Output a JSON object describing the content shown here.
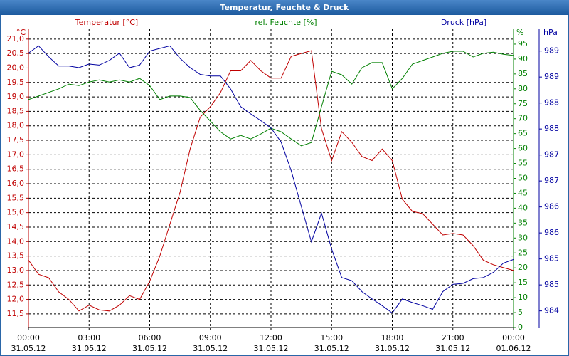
{
  "chart_data": {
    "type": "line",
    "title": "Temperatur, Feuchte & Druck",
    "ylabel": "Temperatur [°C]",
    "yunit": "°C",
    "y3label": "rel. Feuchte [%]",
    "y3unit": "%",
    "y2label": "Druck [hPa]",
    "y2unit": "hPa",
    "grid": true,
    "x": [
      0,
      0.5,
      1,
      1.5,
      2,
      2.5,
      3,
      3.5,
      4,
      4.5,
      5,
      5.5,
      6,
      6.5,
      7,
      7.5,
      8,
      8.5,
      9,
      9.5,
      10,
      10.5,
      11,
      11.5,
      12,
      12.5,
      13,
      13.5,
      14,
      14.5,
      15,
      15.5,
      16,
      16.5,
      17,
      17.5,
      18,
      18.5,
      19,
      19.5,
      20,
      20.5,
      21,
      21.5,
      22,
      22.5,
      23,
      23.5,
      24
    ],
    "xlim": [
      0,
      24
    ],
    "xticks": [
      {
        "value": 0,
        "label": "00:00",
        "date": "31.05.12"
      },
      {
        "value": 3,
        "label": "03:00",
        "date": "31.05.12"
      },
      {
        "value": 6,
        "label": "06:00",
        "date": "31.05.12"
      },
      {
        "value": 9,
        "label": "09:00",
        "date": "31.05.12"
      },
      {
        "value": 12,
        "label": "12:00",
        "date": "31.05.12"
      },
      {
        "value": 15,
        "label": "15:00",
        "date": "31.05.12"
      },
      {
        "value": 18,
        "label": "18:00",
        "date": "31.05.12"
      },
      {
        "value": 21,
        "label": "21:00",
        "date": "31.05.12"
      },
      {
        "value": 24,
        "label": "00:00",
        "date": "01.06.12"
      }
    ],
    "ylim": [
      11.03,
      21.34
    ],
    "yticks": [
      {
        "value": 11.5,
        "label": "11,5"
      },
      {
        "value": 12,
        "label": "12,0"
      },
      {
        "value": 12.5,
        "label": "12,5"
      },
      {
        "value": 13,
        "label": "13,0"
      },
      {
        "value": 13.5,
        "label": "13,5"
      },
      {
        "value": 14,
        "label": "14,0"
      },
      {
        "value": 14.5,
        "label": "14,5"
      },
      {
        "value": 15,
        "label": "15,0"
      },
      {
        "value": 15.5,
        "label": "15,5"
      },
      {
        "value": 16,
        "label": "16,0"
      },
      {
        "value": 16.5,
        "label": "16,5"
      },
      {
        "value": 17,
        "label": "17,0"
      },
      {
        "value": 17.5,
        "label": "17,5"
      },
      {
        "value": 18,
        "label": "18,0"
      },
      {
        "value": 18.5,
        "label": "18,5"
      },
      {
        "value": 19,
        "label": "19,0"
      },
      {
        "value": 19.5,
        "label": "19,5"
      },
      {
        "value": 20,
        "label": "20,0"
      },
      {
        "value": 20.5,
        "label": "20,5"
      },
      {
        "value": 21,
        "label": "21,0"
      }
    ],
    "y3lim": [
      0,
      100
    ],
    "y3ticks": [
      0,
      5,
      10,
      15,
      20,
      25,
      30,
      35,
      40,
      45,
      50,
      55,
      60,
      65,
      70,
      75,
      80,
      85,
      90,
      95
    ],
    "y2lim": [
      983.68,
      989.42
    ],
    "y2ticks": [
      {
        "value": 984,
        "label": "984"
      },
      {
        "value": 984.5,
        "label": "985"
      },
      {
        "value": 985,
        "label": "985"
      },
      {
        "value": 985.5,
        "label": "986"
      },
      {
        "value": 986,
        "label": "986"
      },
      {
        "value": 986.5,
        "label": "987"
      },
      {
        "value": 987,
        "label": "987"
      },
      {
        "value": 987.5,
        "label": "988"
      },
      {
        "value": 988,
        "label": "988"
      },
      {
        "value": 988.5,
        "label": "989"
      },
      {
        "value": 989,
        "label": "989"
      }
    ],
    "series": [
      {
        "name": "Temperatur [°C]",
        "color": "#c00000",
        "axis": "y",
        "values": [
          13.36,
          12.87,
          12.75,
          12.26,
          12.0,
          11.6,
          11.8,
          11.64,
          11.6,
          11.8,
          12.13,
          12.0,
          12.63,
          13.5,
          14.6,
          15.7,
          17.2,
          18.3,
          18.66,
          19.15,
          19.9,
          19.9,
          20.26,
          19.9,
          19.65,
          19.65,
          20.4,
          20.5,
          20.6,
          17.9,
          16.8,
          17.8,
          17.43,
          16.94,
          16.8,
          17.2,
          16.8,
          15.46,
          15.04,
          14.97,
          14.6,
          14.23,
          14.28,
          14.23,
          13.86,
          13.36,
          13.2,
          13.1,
          13.0
        ]
      },
      {
        "name": "rel. Feuchte [%]",
        "color": "#008000",
        "axis": "y3",
        "values": [
          76.4,
          77.6,
          78.8,
          80,
          81.6,
          81.1,
          82.3,
          83,
          82.3,
          83,
          82.3,
          83.5,
          81.1,
          76.4,
          77.6,
          77.6,
          77.1,
          72.8,
          69.2,
          65.6,
          63.2,
          64.4,
          63.2,
          64.9,
          66.8,
          65.6,
          63.2,
          60.9,
          62,
          74,
          85.9,
          84.7,
          81.6,
          87.1,
          88.8,
          88.8,
          80,
          83.5,
          88.3,
          89.5,
          90.7,
          91.9,
          92.6,
          92.6,
          90.7,
          91.9,
          92.3,
          91.6,
          91.2
        ]
      },
      {
        "name": "Druck [hPa]",
        "color": "#0000a0",
        "axis": "y2",
        "values": [
          988.96,
          989.1,
          988.89,
          988.71,
          988.71,
          988.68,
          988.75,
          988.73,
          988.82,
          988.96,
          988.68,
          988.73,
          989.0,
          989.05,
          989.1,
          988.86,
          988.68,
          988.55,
          988.52,
          988.52,
          988.27,
          987.93,
          987.79,
          987.66,
          987.52,
          987.25,
          986.7,
          986.01,
          985.33,
          985.88,
          985.19,
          984.64,
          984.58,
          984.37,
          984.23,
          984.1,
          983.96,
          984.23,
          984.16,
          984.1,
          984.03,
          984.37,
          984.51,
          984.53,
          984.62,
          984.64,
          984.74,
          984.92,
          984.99
        ]
      }
    ]
  }
}
